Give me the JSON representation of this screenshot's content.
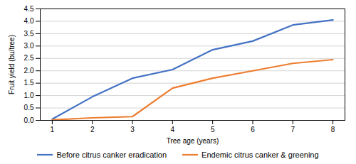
{
  "chart_data": {
    "type": "line",
    "x": [
      1,
      2,
      3,
      4,
      5,
      6,
      7,
      8
    ],
    "series": [
      {
        "name": "Before citrus canker eradication",
        "color": "#4472C4",
        "values": [
          0.05,
          0.95,
          1.7,
          2.05,
          2.85,
          3.2,
          3.85,
          4.05
        ]
      },
      {
        "name": "Endemic citrus canker & greening",
        "color": "#ED7D31",
        "values": [
          0.02,
          0.1,
          0.15,
          1.3,
          1.7,
          2.0,
          2.3,
          2.45
        ]
      }
    ],
    "xlabel": "Tree age (years)",
    "ylabel": "Fruit yield (bu/tree)",
    "xlim": [
      0.7,
      8.3
    ],
    "ylim": [
      0,
      4.5
    ],
    "xticks": [
      1,
      2,
      3,
      4,
      5,
      6,
      7,
      8
    ],
    "yticks": [
      {
        "value": 0,
        "label": "0.0"
      },
      0.5,
      {
        "value": 1,
        "label": "1.0"
      },
      1.5,
      {
        "value": 2,
        "label": "2.0"
      },
      2.5,
      {
        "value": 3,
        "label": "3.0"
      },
      3.5,
      {
        "value": 4,
        "label": "4.0"
      },
      4.5
    ],
    "grid": true,
    "legend": "bottom"
  }
}
